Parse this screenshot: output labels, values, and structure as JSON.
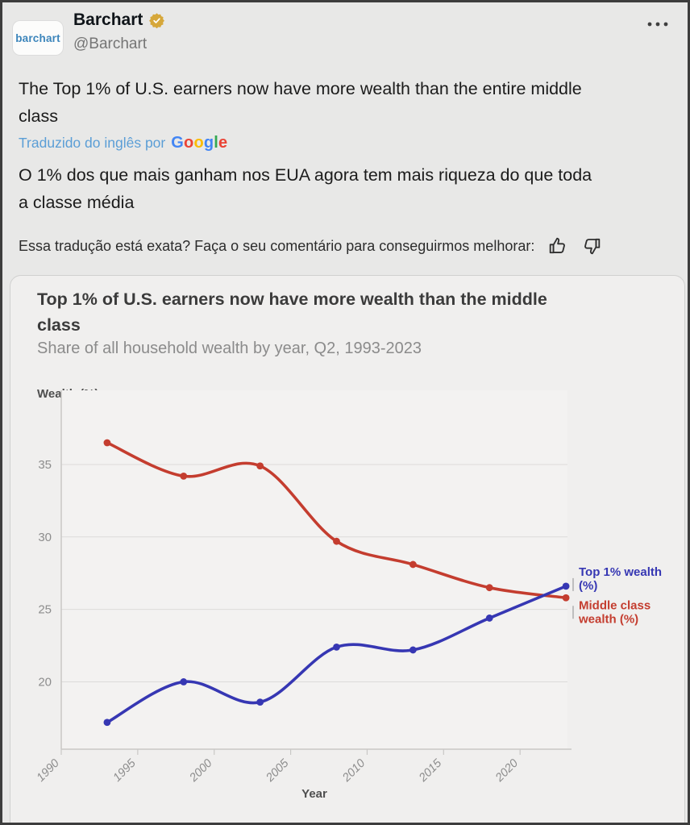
{
  "post": {
    "avatar_text": "barchart",
    "display_name": "Barchart",
    "handle": "@Barchart",
    "tweet_text": "The Top 1% of U.S. earners now have more wealth than the entire middle\nclass",
    "translation_credit": "Traduzido do inglês por",
    "google_wordmark": [
      {
        "ch": "G",
        "color": "#4285F4"
      },
      {
        "ch": "o",
        "color": "#EA4335"
      },
      {
        "ch": "o",
        "color": "#FBBC05"
      },
      {
        "ch": "g",
        "color": "#4285F4"
      },
      {
        "ch": "l",
        "color": "#34A853"
      },
      {
        "ch": "e",
        "color": "#EA4335"
      }
    ],
    "translated_text": "O 1% dos que mais ganham nos EUA agora tem mais riqueza do que toda\na classe média",
    "feedback_prompt": "Essa tradução está exata? Faça o seu comentário para conseguirmos melhorar:"
  },
  "theme": {
    "verified_badge_gold": "#d6a73a",
    "avatar_brand_blue": "#3c85bb",
    "translation_link_blue": "#5b9ed6",
    "page_background": "#e8e8e7",
    "card_background": "#f0efee"
  },
  "chart_data": {
    "type": "line",
    "title": "Top 1% of U.S. earners now have more wealth than the middle\nclass",
    "subtitle": "Share of all household wealth by year, Q2, 1993-2023",
    "ylabel": "Wealth (%)",
    "xlabel": "Year",
    "x": [
      1993,
      1998,
      2003,
      2008,
      2013,
      2018,
      2023
    ],
    "series": [
      {
        "name": "Top 1% wealth (%)",
        "label_lines": [
          "Top 1% wealth",
          "(%)"
        ],
        "color": "#3637b3",
        "values": [
          17.2,
          20.0,
          18.6,
          22.4,
          22.2,
          24.4,
          26.6
        ]
      },
      {
        "name": "Middle class wealth (%)",
        "label_lines": [
          "Middle class",
          "wealth (%)"
        ],
        "color": "#c43d2f",
        "values": [
          36.5,
          34.2,
          34.9,
          29.7,
          28.1,
          26.5,
          25.8
        ]
      }
    ],
    "xticks": [
      1990,
      1995,
      2000,
      2005,
      2010,
      2015,
      2020
    ],
    "yticks": [
      20,
      25,
      30,
      35
    ],
    "xlim": [
      1990,
      2023.1
    ],
    "ylim": [
      15.35,
      38.45
    ],
    "grid": true,
    "legend_position": "right-annotations"
  }
}
